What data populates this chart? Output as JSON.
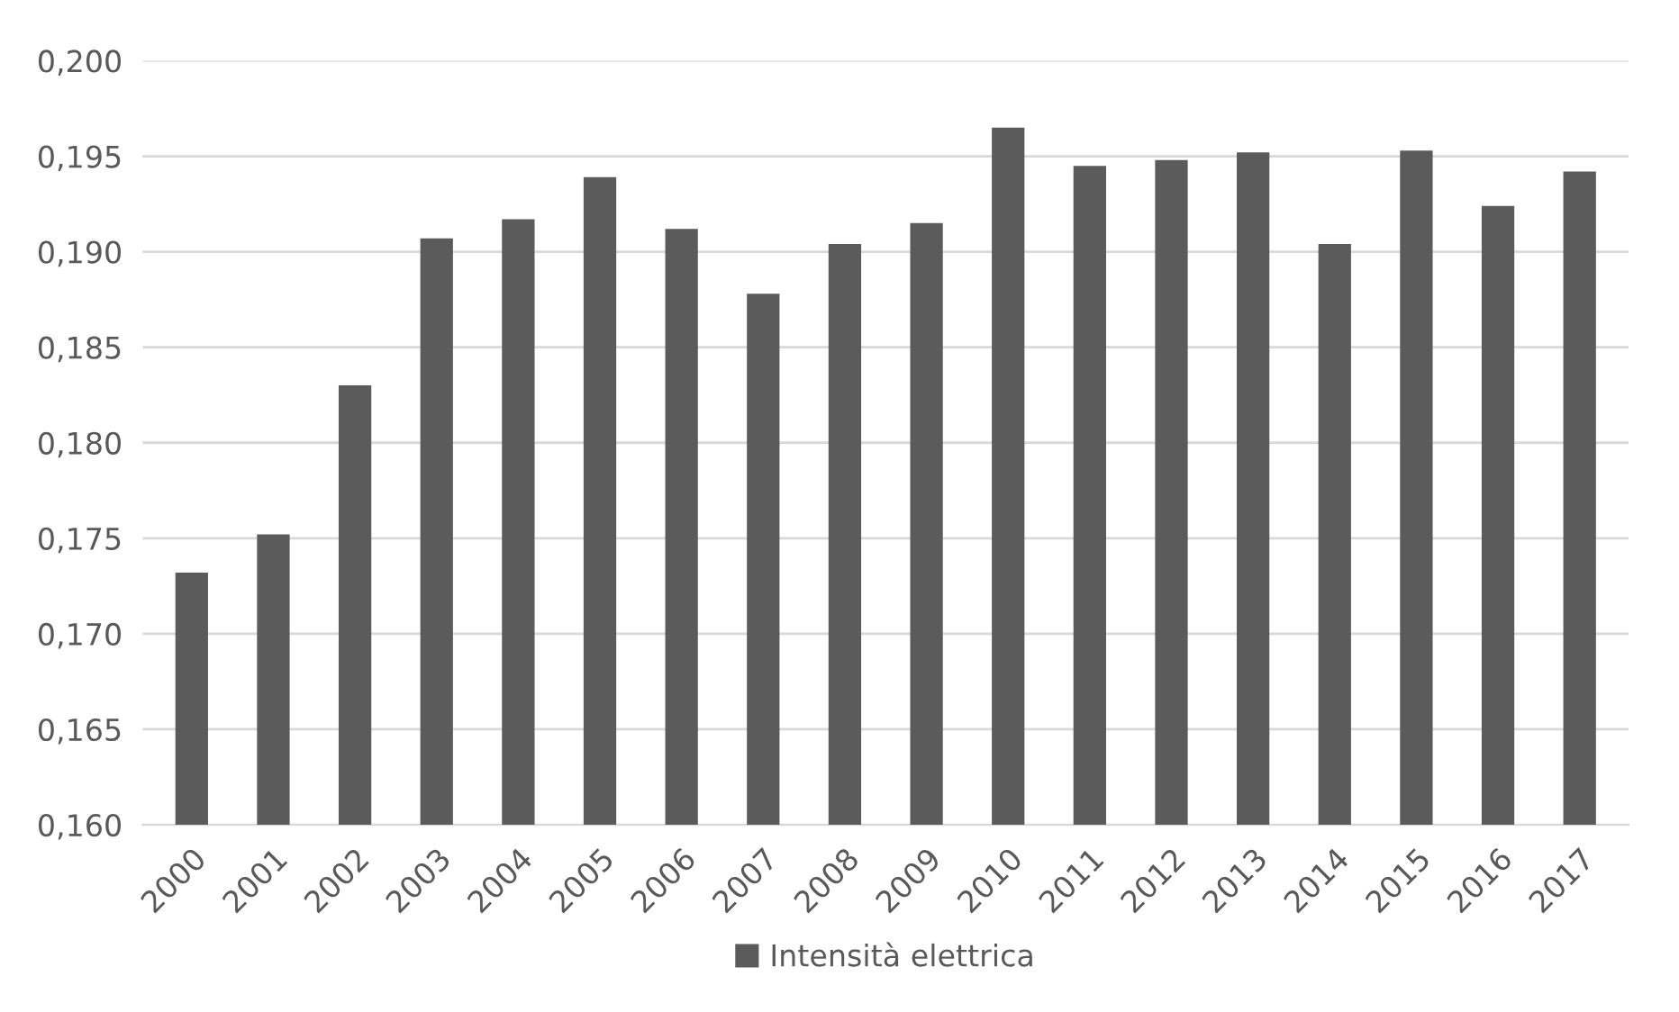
{
  "chart_data": {
    "type": "bar",
    "categories": [
      "2000",
      "2001",
      "2002",
      "2003",
      "2004",
      "2005",
      "2006",
      "2007",
      "2008",
      "2009",
      "2010",
      "2011",
      "2012",
      "2013",
      "2014",
      "2015",
      "2016",
      "2017"
    ],
    "series": [
      {
        "name": "Intensità elettrica",
        "color": "#5b5b5b",
        "values": [
          0.1732,
          0.1752,
          0.183,
          0.1907,
          0.1917,
          0.1939,
          0.1912,
          0.1878,
          0.1904,
          0.1915,
          0.1965,
          0.1945,
          0.1948,
          0.1952,
          0.1904,
          0.1953,
          0.1924,
          0.1942
        ]
      }
    ],
    "ylim": [
      0.16,
      0.2
    ],
    "yticks": [
      {
        "value": 0.16,
        "label": "0,160"
      },
      {
        "value": 0.165,
        "label": "0,165"
      },
      {
        "value": 0.17,
        "label": "0,170"
      },
      {
        "value": 0.175,
        "label": "0,175"
      },
      {
        "value": 0.18,
        "label": "0,180"
      },
      {
        "value": 0.185,
        "label": "0,185"
      },
      {
        "value": 0.19,
        "label": "0,190"
      },
      {
        "value": 0.195,
        "label": "0,195"
      },
      {
        "value": 0.2,
        "label": "0,200"
      }
    ],
    "grid": "y",
    "legend": "bottom"
  }
}
